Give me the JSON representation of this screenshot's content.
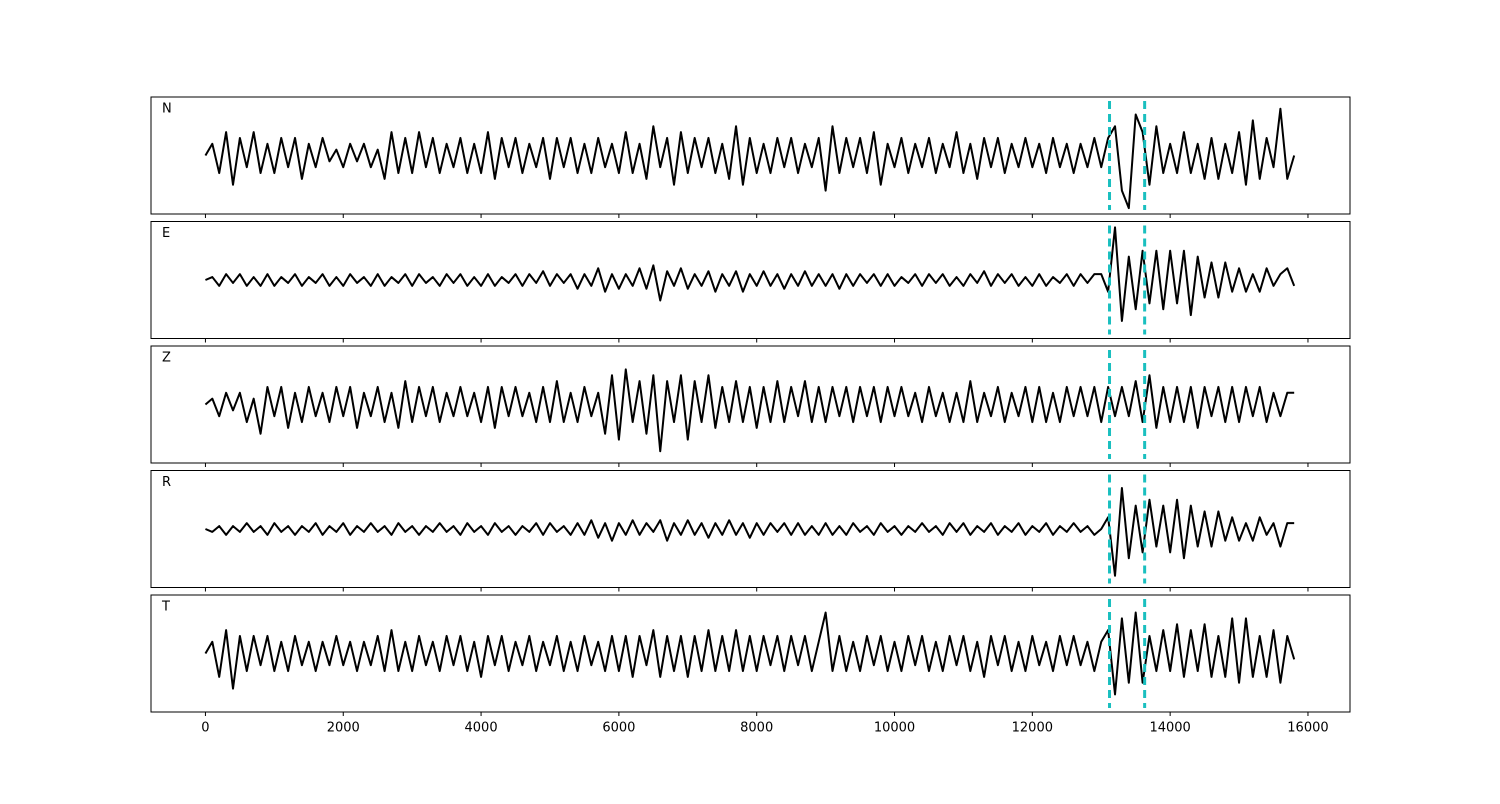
{
  "chart_data": {
    "type": "line",
    "x": [
      0,
      100,
      200,
      300,
      400,
      500,
      600,
      700,
      800,
      900,
      1000,
      1100,
      1200,
      1300,
      1400,
      1500,
      1600,
      1700,
      1800,
      1900,
      2000,
      2100,
      2200,
      2300,
      2400,
      2500,
      2600,
      2700,
      2800,
      2900,
      3000,
      3100,
      3200,
      3300,
      3400,
      3500,
      3600,
      3700,
      3800,
      3900,
      4000,
      4100,
      4200,
      4300,
      4400,
      4500,
      4600,
      4700,
      4800,
      4900,
      5000,
      5100,
      5200,
      5300,
      5400,
      5500,
      5600,
      5700,
      5800,
      5900,
      6000,
      6100,
      6200,
      6300,
      6400,
      6500,
      6600,
      6700,
      6800,
      6900,
      7000,
      7100,
      7200,
      7300,
      7400,
      7500,
      7600,
      7700,
      7800,
      7900,
      8000,
      8100,
      8200,
      8300,
      8400,
      8500,
      8600,
      8700,
      8800,
      8900,
      9000,
      9100,
      9200,
      9300,
      9400,
      9500,
      9600,
      9700,
      9800,
      9900,
      10000,
      10100,
      10200,
      10300,
      10400,
      10500,
      10600,
      10700,
      10800,
      10900,
      11000,
      11100,
      11200,
      11300,
      11400,
      11500,
      11600,
      11700,
      11800,
      11900,
      12000,
      12100,
      12200,
      12300,
      12400,
      12500,
      12600,
      12700,
      12800,
      12900,
      13000,
      13100,
      13200,
      13300,
      13400,
      13500,
      13600,
      13700,
      13800,
      13900,
      14000,
      14100,
      14200,
      14300,
      14400,
      14500,
      14600,
      14700,
      14800,
      14900,
      15000,
      15100,
      15200,
      15300,
      15400,
      15500,
      15600,
      15700,
      15800
    ],
    "xlim": [
      -790,
      16610
    ],
    "xticks": [
      0,
      2000,
      4000,
      6000,
      8000,
      10000,
      12000,
      14000,
      16000
    ],
    "ylim": [
      -1,
      1
    ],
    "vlines": {
      "color": "#1abfbf",
      "x": [
        13120,
        13630
      ]
    },
    "series": [
      {
        "name": "N",
        "color": "#000000",
        "values": [
          0,
          0.2,
          -0.3,
          0.4,
          -0.5,
          0.3,
          -0.2,
          0.4,
          -0.3,
          0.2,
          -0.3,
          0.3,
          -0.2,
          0.3,
          -0.4,
          0.2,
          -0.2,
          0.3,
          -0.1,
          0.1,
          -0.2,
          0.2,
          -0.1,
          0.2,
          -0.2,
          0.1,
          -0.4,
          0.4,
          -0.3,
          0.3,
          -0.3,
          0.4,
          -0.2,
          0.3,
          -0.3,
          0.2,
          -0.2,
          0.3,
          -0.3,
          0.2,
          -0.3,
          0.4,
          -0.4,
          0.3,
          -0.2,
          0.3,
          -0.3,
          0.2,
          -0.2,
          0.3,
          -0.4,
          0.3,
          -0.2,
          0.3,
          -0.3,
          0.2,
          -0.3,
          0.3,
          -0.2,
          0.2,
          -0.3,
          0.4,
          -0.3,
          0.2,
          -0.4,
          0.5,
          -0.2,
          0.3,
          -0.5,
          0.4,
          -0.3,
          0.3,
          -0.2,
          0.3,
          -0.3,
          0.2,
          -0.4,
          0.5,
          -0.5,
          0.3,
          -0.3,
          0.2,
          -0.3,
          0.3,
          -0.2,
          0.3,
          -0.3,
          0.2,
          -0.2,
          0.3,
          -0.6,
          0.5,
          -0.3,
          0.3,
          -0.2,
          0.3,
          -0.3,
          0.4,
          -0.5,
          0.2,
          -0.2,
          0.3,
          -0.3,
          0.2,
          -0.2,
          0.3,
          -0.3,
          0.2,
          -0.2,
          0.4,
          -0.3,
          0.2,
          -0.4,
          0.3,
          -0.2,
          0.3,
          -0.3,
          0.2,
          -0.2,
          0.3,
          -0.2,
          0.2,
          -0.3,
          0.3,
          -0.2,
          0.2,
          -0.3,
          0.2,
          -0.2,
          0.3,
          -0.2,
          0.3,
          0.5,
          -0.6,
          -0.9,
          0.7,
          0.4,
          -0.5,
          0.5,
          -0.3,
          0.2,
          -0.3,
          0.4,
          -0.3,
          0.2,
          -0.4,
          0.3,
          -0.4,
          0.2,
          -0.3,
          0.4,
          -0.5,
          0.6,
          -0.4,
          0.3,
          -0.2,
          0.8,
          -0.4,
          0
        ]
      },
      {
        "name": "E",
        "color": "#000000",
        "values": [
          0,
          0.05,
          -0.1,
          0.1,
          -0.05,
          0.1,
          -0.1,
          0.05,
          -0.1,
          0.1,
          -0.1,
          0.05,
          -0.05,
          0.1,
          -0.1,
          0.05,
          -0.05,
          0.1,
          -0.1,
          0.05,
          -0.1,
          0.1,
          -0.05,
          0.05,
          -0.1,
          0.1,
          -0.1,
          0.05,
          -0.05,
          0.1,
          -0.1,
          0.1,
          -0.05,
          0.05,
          -0.1,
          0.1,
          -0.05,
          0.1,
          -0.1,
          0.05,
          -0.1,
          0.1,
          -0.1,
          0.05,
          -0.05,
          0.1,
          -0.1,
          0.1,
          -0.05,
          0.15,
          -0.1,
          0.1,
          -0.05,
          0.1,
          -0.15,
          0.1,
          -0.1,
          0.2,
          -0.2,
          0.1,
          -0.15,
          0.1,
          -0.1,
          0.2,
          -0.15,
          0.25,
          -0.35,
          0.15,
          -0.1,
          0.2,
          -0.15,
          0.1,
          -0.1,
          0.15,
          -0.2,
          0.1,
          -0.1,
          0.15,
          -0.2,
          0.1,
          -0.1,
          0.15,
          -0.1,
          0.1,
          -0.15,
          0.1,
          -0.1,
          0.15,
          -0.1,
          0.1,
          -0.1,
          0.1,
          -0.15,
          0.1,
          -0.1,
          0.1,
          -0.05,
          0.1,
          -0.1,
          0.1,
          -0.1,
          0.05,
          -0.05,
          0.1,
          -0.1,
          0.1,
          -0.05,
          0.1,
          -0.1,
          0.05,
          -0.1,
          0.1,
          -0.05,
          0.15,
          -0.1,
          0.1,
          -0.05,
          0.1,
          -0.1,
          0.05,
          -0.1,
          0.1,
          -0.1,
          0.05,
          -0.05,
          0.1,
          -0.1,
          0.1,
          -0.05,
          0.1,
          0.1,
          -0.2,
          0.9,
          -0.7,
          0.4,
          -0.5,
          0.5,
          -0.4,
          0.5,
          -0.5,
          0.5,
          -0.4,
          0.5,
          -0.6,
          0.4,
          -0.3,
          0.3,
          -0.3,
          0.3,
          -0.2,
          0.2,
          -0.2,
          0.1,
          -0.2,
          0.2,
          -0.1,
          0.1,
          0.2,
          -0.1
        ]
      },
      {
        "name": "Z",
        "color": "#000000",
        "values": [
          0,
          0.1,
          -0.2,
          0.2,
          -0.1,
          0.2,
          -0.3,
          0.1,
          -0.5,
          0.3,
          -0.2,
          0.3,
          -0.4,
          0.2,
          -0.3,
          0.3,
          -0.2,
          0.2,
          -0.3,
          0.3,
          -0.2,
          0.3,
          -0.4,
          0.2,
          -0.2,
          0.3,
          -0.3,
          0.2,
          -0.4,
          0.4,
          -0.3,
          0.3,
          -0.2,
          0.3,
          -0.3,
          0.2,
          -0.2,
          0.3,
          -0.2,
          0.2,
          -0.3,
          0.3,
          -0.4,
          0.3,
          -0.2,
          0.3,
          -0.2,
          0.2,
          -0.3,
          0.3,
          -0.3,
          0.4,
          -0.3,
          0.2,
          -0.3,
          0.3,
          -0.2,
          0.2,
          -0.5,
          0.5,
          -0.6,
          0.6,
          -0.3,
          0.4,
          -0.5,
          0.5,
          -0.8,
          0.4,
          -0.3,
          0.5,
          -0.6,
          0.4,
          -0.3,
          0.5,
          -0.4,
          0.3,
          -0.3,
          0.4,
          -0.3,
          0.3,
          -0.4,
          0.3,
          -0.3,
          0.4,
          -0.3,
          0.3,
          -0.2,
          0.4,
          -0.3,
          0.3,
          -0.3,
          0.3,
          -0.2,
          0.3,
          -0.3,
          0.3,
          -0.2,
          0.3,
          -0.3,
          0.3,
          -0.2,
          0.3,
          -0.2,
          0.2,
          -0.3,
          0.3,
          -0.2,
          0.2,
          -0.3,
          0.2,
          -0.3,
          0.4,
          -0.3,
          0.2,
          -0.2,
          0.3,
          -0.3,
          0.2,
          -0.2,
          0.3,
          -0.3,
          0.3,
          -0.3,
          0.2,
          -0.3,
          0.3,
          -0.2,
          0.3,
          -0.2,
          0.3,
          -0.3,
          0.3,
          -0.2,
          0.3,
          -0.2,
          0.4,
          -0.3,
          0.5,
          -0.4,
          0.3,
          -0.3,
          0.3,
          -0.3,
          0.3,
          -0.4,
          0.3,
          -0.2,
          0.3,
          -0.3,
          0.3,
          -0.3,
          0.3,
          -0.2,
          0.3,
          -0.3,
          0.2,
          -0.2,
          0.2,
          0.2
        ]
      },
      {
        "name": "R",
        "color": "#000000",
        "values": [
          0,
          -0.05,
          0.05,
          -0.1,
          0.05,
          -0.05,
          0.1,
          -0.05,
          0.05,
          -0.1,
          0.1,
          -0.05,
          0.05,
          -0.1,
          0.05,
          -0.05,
          0.1,
          -0.1,
          0.05,
          -0.05,
          0.1,
          -0.1,
          0.05,
          -0.05,
          0.1,
          -0.05,
          0.05,
          -0.1,
          0.1,
          -0.05,
          0.05,
          -0.1,
          0.05,
          -0.05,
          0.1,
          -0.05,
          0.05,
          -0.1,
          0.1,
          -0.05,
          0.05,
          -0.1,
          0.1,
          -0.05,
          0.05,
          -0.1,
          0.05,
          -0.05,
          0.1,
          -0.1,
          0.1,
          -0.05,
          0.05,
          -0.1,
          0.1,
          -0.1,
          0.15,
          -0.15,
          0.1,
          -0.2,
          0.1,
          -0.1,
          0.15,
          -0.1,
          0.1,
          -0.05,
          0.15,
          -0.2,
          0.1,
          -0.1,
          0.15,
          -0.1,
          0.1,
          -0.15,
          0.1,
          -0.1,
          0.15,
          -0.1,
          0.1,
          -0.15,
          0.1,
          -0.1,
          0.1,
          -0.05,
          0.1,
          -0.1,
          0.1,
          -0.1,
          0.05,
          -0.1,
          0.1,
          -0.1,
          0.05,
          -0.1,
          0.1,
          -0.05,
          0.05,
          -0.1,
          0.1,
          -0.05,
          0.05,
          -0.1,
          0.05,
          -0.05,
          0.1,
          -0.05,
          0.05,
          -0.1,
          0.1,
          -0.05,
          0.1,
          -0.1,
          0.05,
          -0.05,
          0.1,
          -0.1,
          0.05,
          -0.05,
          0.1,
          -0.1,
          0.05,
          -0.05,
          0.1,
          -0.1,
          0.05,
          -0.05,
          0.1,
          -0.05,
          0.05,
          -0.1,
          0,
          0.2,
          -0.8,
          0.7,
          -0.5,
          0.4,
          -0.4,
          0.5,
          -0.3,
          0.4,
          -0.4,
          0.5,
          -0.5,
          0.4,
          -0.3,
          0.3,
          -0.3,
          0.3,
          -0.2,
          0.2,
          -0.2,
          0.1,
          -0.2,
          0.2,
          -0.1,
          0.1,
          -0.3,
          0.1,
          0.1
        ]
      },
      {
        "name": "T",
        "color": "#000000",
        "values": [
          0,
          0.2,
          -0.4,
          0.4,
          -0.6,
          0.3,
          -0.3,
          0.3,
          -0.2,
          0.3,
          -0.3,
          0.2,
          -0.3,
          0.3,
          -0.2,
          0.2,
          -0.3,
          0.2,
          -0.2,
          0.3,
          -0.2,
          0.2,
          -0.3,
          0.2,
          -0.2,
          0.3,
          -0.3,
          0.4,
          -0.3,
          0.2,
          -0.3,
          0.3,
          -0.2,
          0.2,
          -0.3,
          0.3,
          -0.2,
          0.3,
          -0.3,
          0.2,
          -0.4,
          0.3,
          -0.2,
          0.3,
          -0.3,
          0.2,
          -0.2,
          0.3,
          -0.3,
          0.2,
          -0.2,
          0.3,
          -0.3,
          0.2,
          -0.3,
          0.3,
          -0.2,
          0.2,
          -0.3,
          0.3,
          -0.3,
          0.3,
          -0.4,
          0.3,
          -0.2,
          0.4,
          -0.4,
          0.3,
          -0.3,
          0.3,
          -0.4,
          0.3,
          -0.3,
          0.4,
          -0.3,
          0.3,
          -0.3,
          0.4,
          -0.3,
          0.3,
          -0.3,
          0.3,
          -0.2,
          0.3,
          -0.3,
          0.3,
          -0.2,
          0.3,
          -0.3,
          0.2,
          0.7,
          -0.3,
          0.3,
          -0.3,
          0.2,
          -0.3,
          0.3,
          -0.2,
          0.3,
          -0.3,
          0.2,
          -0.3,
          0.3,
          -0.2,
          0.3,
          -0.3,
          0.2,
          -0.3,
          0.3,
          -0.2,
          0.3,
          -0.3,
          0.2,
          -0.4,
          0.3,
          -0.2,
          0.3,
          -0.3,
          0.2,
          -0.3,
          0.3,
          -0.2,
          0.2,
          -0.3,
          0.3,
          -0.2,
          0.3,
          -0.2,
          0.2,
          -0.3,
          0.2,
          0.4,
          -0.7,
          0.6,
          -0.5,
          0.7,
          -0.5,
          0.3,
          -0.3,
          0.4,
          -0.3,
          0.5,
          -0.4,
          0.4,
          -0.3,
          0.5,
          -0.4,
          0.3,
          -0.4,
          0.6,
          -0.5,
          0.6,
          -0.4,
          0.3,
          -0.4,
          0.4,
          -0.5,
          0.3,
          -0.1
        ]
      }
    ]
  }
}
